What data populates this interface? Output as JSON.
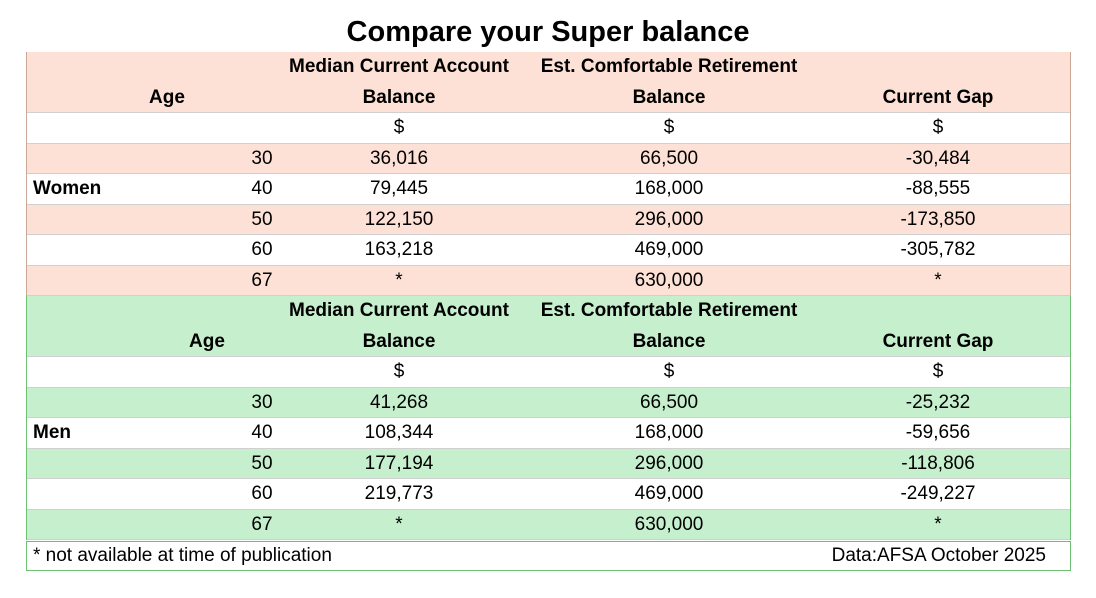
{
  "chart_data": {
    "type": "table",
    "title": "Compare your Super balance",
    "columns": {
      "age": "Age",
      "median": [
        "Median Current Account",
        "Balance"
      ],
      "est": [
        "Est. Comfortable Retirement",
        "Balance"
      ],
      "gap": "Current Gap",
      "unit": "$"
    },
    "groups": [
      {
        "name": "Women",
        "rows": [
          {
            "age": "30",
            "median": "36,016",
            "est": "66,500",
            "gap": "-30,484"
          },
          {
            "age": "40",
            "median": "79,445",
            "est": "168,000",
            "gap": "-88,555"
          },
          {
            "age": "50",
            "median": "122,150",
            "est": "296,000",
            "gap": "-173,850"
          },
          {
            "age": "60",
            "median": "163,218",
            "est": "469,000",
            "gap": "-305,782"
          },
          {
            "age": "67",
            "median": "*",
            "est": "630,000",
            "gap": "*"
          }
        ]
      },
      {
        "name": "Men",
        "rows": [
          {
            "age": "30",
            "median": "41,268",
            "est": "66,500",
            "gap": "-25,232"
          },
          {
            "age": "40",
            "median": "108,344",
            "est": "168,000",
            "gap": "-59,656"
          },
          {
            "age": "50",
            "median": "177,194",
            "est": "296,000",
            "gap": "-118,806"
          },
          {
            "age": "60",
            "median": "219,773",
            "est": "469,000",
            "gap": "-249,227"
          },
          {
            "age": "67",
            "median": "*",
            "est": "630,000",
            "gap": "*"
          }
        ]
      }
    ],
    "footnote": "* not available at time of publication",
    "source": "Data:AFSA October 2025",
    "colors": {
      "women": "#fde1d6",
      "men": "#c6efce"
    }
  }
}
